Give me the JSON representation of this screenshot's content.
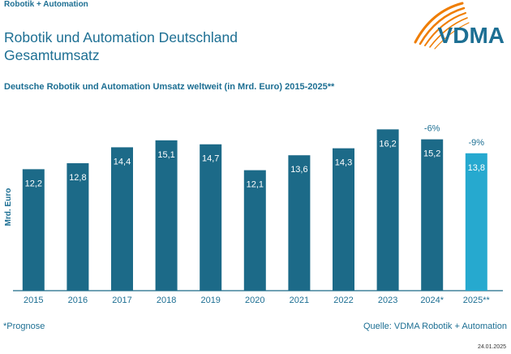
{
  "header": {
    "kicker": "Robotik + Automation",
    "title_line1": "Robotik und Automation Deutschland",
    "title_line2": "Gesamtumsatz"
  },
  "logo": {
    "text": "VDMA",
    "icon": "vdma-swoosh-icon",
    "colors": {
      "text": "#1d6f93",
      "swoosh": "#ef7d00"
    }
  },
  "chart_data": {
    "type": "bar",
    "title": "Deutsche Robotik und Automation Umsatz weltweit (in Mrd. Euro) 2015-2025**",
    "ylabel": "Mrd. Euro",
    "xlabel": "",
    "categories": [
      "2015",
      "2016",
      "2017",
      "2018",
      "2019",
      "2020",
      "2021",
      "2022",
      "2023",
      "2024*",
      "2025**"
    ],
    "values": [
      12.2,
      12.8,
      14.4,
      15.1,
      14.7,
      12.1,
      13.6,
      14.3,
      16.2,
      15.2,
      13.8
    ],
    "value_labels": [
      "12,2",
      "12,8",
      "14,4",
      "15,1",
      "14,7",
      "12,1",
      "13,6",
      "14,3",
      "16,2",
      "15,2",
      "13,8"
    ],
    "ylim": [
      0,
      19
    ],
    "grid": false,
    "annotations": [
      {
        "index": 9,
        "text": "-6%"
      },
      {
        "index": 10,
        "text": "-9%"
      }
    ],
    "colors": {
      "actual": "#1c6a88",
      "forecast": "#26a9cf",
      "forecast_from_index": 10
    }
  },
  "footer": {
    "footnote": "*Prognose",
    "source": "Quelle: VDMA Robotik + Automation",
    "date": "24.01.2025"
  }
}
